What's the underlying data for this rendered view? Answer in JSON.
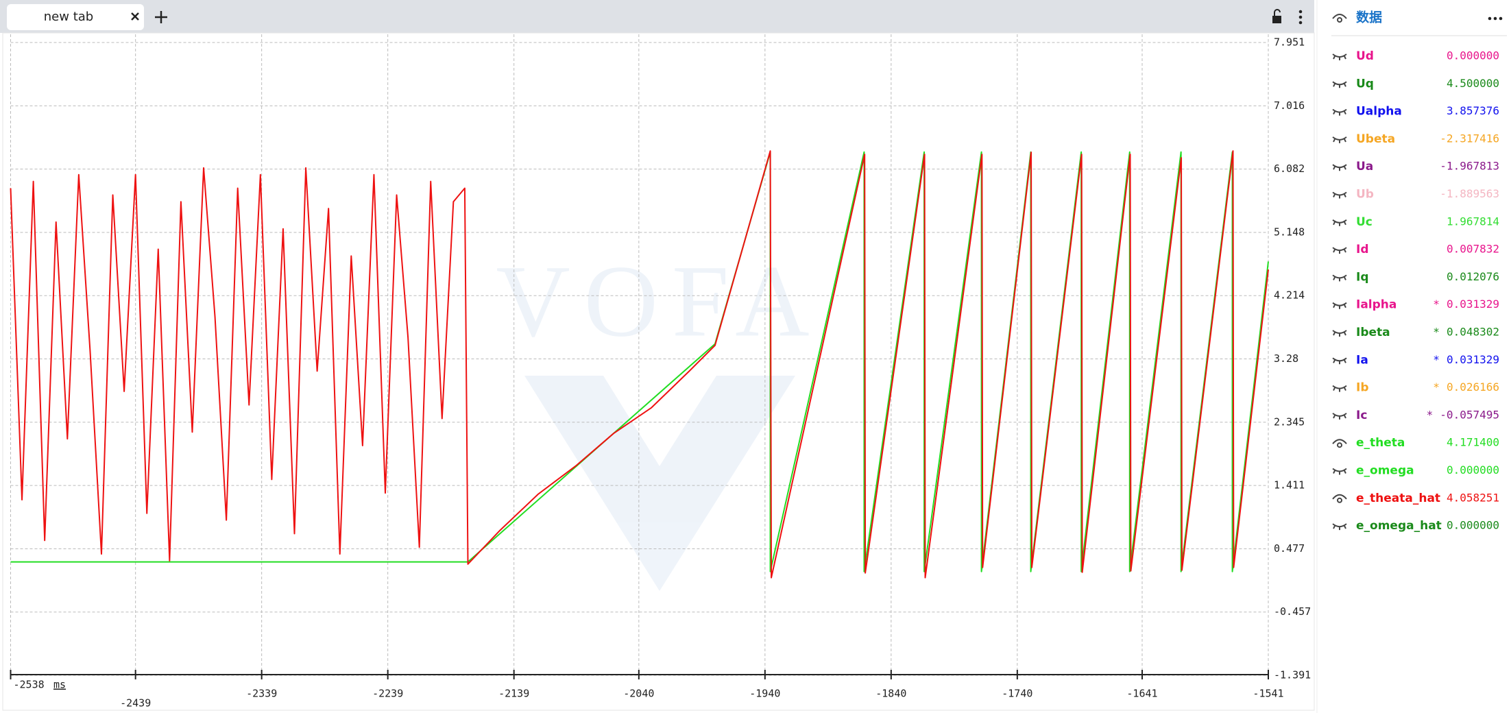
{
  "tab": {
    "title": "new tab"
  },
  "chart_data": {
    "type": "line",
    "watermark": "VOFA",
    "x_unit": "ms",
    "xlim": [
      -2538,
      -1541
    ],
    "xticks": [
      -2538,
      -2439,
      -2339,
      -2239,
      -2139,
      -2040,
      -1940,
      -1840,
      -1740,
      -1641,
      -1541
    ],
    "ylim": [
      -1.391,
      7.951
    ],
    "yticks": [
      7.951,
      7.016,
      6.082,
      5.148,
      4.214,
      3.28,
      2.345,
      1.411,
      0.477,
      -0.457,
      -1.391
    ],
    "grid": true,
    "series": [
      {
        "color": "#22dd22",
        "x": [
          -2538,
          -2175.5,
          -1979.6,
          -1935.8,
          -1935.8,
          -1861.4,
          -1861.4,
          -1813.8,
          -1813.8,
          -1768.4,
          -1768.4,
          -1729.3,
          -1729.3,
          -1689.3,
          -1689.3,
          -1650.9,
          -1650.9,
          -1610.2,
          -1610.2,
          -1569.5,
          -1569.5,
          -1541
        ],
        "values": [
          0.283,
          0.283,
          3.502,
          6.334,
          0.14,
          6.334,
          0.14,
          6.334,
          0.14,
          6.334,
          0.14,
          6.334,
          0.14,
          6.334,
          0.14,
          6.334,
          0.14,
          6.334,
          0.14,
          6.334,
          0.14,
          4.718
        ]
      },
      {
        "color": "#ee1111",
        "x": [
          -2538,
          -2529,
          -2520,
          -2511,
          -2502,
          -2493,
          -2484,
          -2475,
          -2466,
          -2457,
          -2448,
          -2439,
          -2430,
          -2421,
          -2412,
          -2403,
          -2394,
          -2385,
          -2376,
          -2367,
          -2358,
          -2349,
          -2340,
          -2331,
          -2322,
          -2313,
          -2304,
          -2295,
          -2286,
          -2277,
          -2268,
          -2259,
          -2250,
          -2241,
          -2232,
          -2223,
          -2214,
          -2205,
          -2196,
          -2187,
          -2178,
          -2175.5,
          -2150,
          -2120,
          -2090,
          -2060,
          -2030,
          -2000,
          -1979.6,
          -1935.8,
          -1935,
          -1861,
          -1860.5,
          -1813.5,
          -1813,
          -1768,
          -1767.5,
          -1729,
          -1728.5,
          -1689,
          -1688.5,
          -1650.5,
          -1650,
          -1610,
          -1609.5,
          -1569,
          -1568.5,
          -1541
        ],
        "values": [
          5.8,
          1.2,
          5.9,
          0.6,
          5.3,
          2.1,
          6.0,
          3.4,
          0.4,
          5.7,
          2.8,
          6.0,
          1.0,
          4.9,
          0.3,
          5.6,
          2.2,
          6.1,
          3.9,
          0.9,
          5.8,
          2.6,
          6.0,
          1.5,
          5.2,
          0.7,
          6.1,
          3.1,
          5.5,
          0.4,
          4.8,
          2.0,
          6.0,
          1.3,
          5.7,
          3.6,
          0.5,
          5.9,
          2.4,
          5.6,
          5.8,
          0.25,
          0.75,
          1.28,
          1.7,
          2.18,
          2.56,
          3.1,
          3.48,
          6.35,
          0.05,
          6.3,
          0.12,
          6.3,
          0.05,
          6.3,
          0.2,
          6.33,
          0.2,
          6.3,
          0.13,
          6.3,
          0.15,
          6.25,
          0.16,
          6.35,
          0.2,
          4.6
        ]
      }
    ]
  },
  "panel": {
    "title": "数据",
    "channels": [
      {
        "name": "Ud",
        "color": "#e8158c",
        "value": "0.000000",
        "visible": false
      },
      {
        "name": "Uq",
        "color": "#1a8a1a",
        "value": "4.500000",
        "visible": false
      },
      {
        "name": "Ualpha",
        "color": "#1111ee",
        "value": "3.857376",
        "visible": false
      },
      {
        "name": "Ubeta",
        "color": "#f5a623",
        "value": "-2.317416",
        "visible": false
      },
      {
        "name": "Ua",
        "color": "#8b1a8b",
        "value": "-1.967813",
        "visible": false
      },
      {
        "name": "Ub",
        "color": "#f4b6c2",
        "value": "-1.889563",
        "visible": false
      },
      {
        "name": "Uc",
        "color": "#33dd33",
        "value": "1.967814",
        "visible": false
      },
      {
        "name": "Id",
        "color": "#e8158c",
        "value": "0.007832",
        "visible": false
      },
      {
        "name": "Iq",
        "color": "#1a8a1a",
        "value": "0.012076",
        "visible": false
      },
      {
        "name": "Ialpha",
        "color": "#e8158c",
        "marker": "*",
        "value": "0.031329",
        "visible": false
      },
      {
        "name": "Ibeta",
        "color": "#1a8a1a",
        "marker": "*",
        "value": "0.048302",
        "visible": false
      },
      {
        "name": "Ia",
        "color": "#1111ee",
        "marker": "*",
        "value": "0.031329",
        "visible": false
      },
      {
        "name": "Ib",
        "color": "#f5a623",
        "marker": "*",
        "value": "0.026166",
        "visible": false
      },
      {
        "name": "Ic",
        "color": "#8b1a8b",
        "marker": "*",
        "value": "-0.057495",
        "visible": false
      },
      {
        "name": "e_theta",
        "color": "#22dd22",
        "value": "4.171400",
        "visible": true
      },
      {
        "name": "e_omega",
        "color": "#22dd22",
        "value": "0.000000",
        "visible": false
      },
      {
        "name": "e_theata_hat",
        "color": "#ee1111",
        "value": "4.058251",
        "visible": true
      },
      {
        "name": "e_omega_hat",
        "color": "#1a8a1a",
        "value": "0.000000",
        "visible": false
      }
    ]
  }
}
